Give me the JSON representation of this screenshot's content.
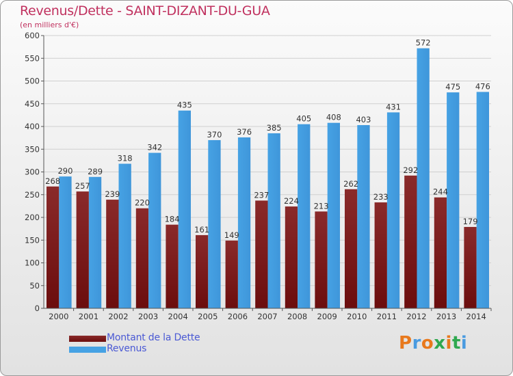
{
  "colors": {
    "dette": "#6b0d0d",
    "revenus": "#46a2e4",
    "title": "#c0305e",
    "legend_text": "#4a59d4"
  },
  "chart_data": {
    "type": "bar",
    "title": "Revenus/Dette - SAINT-DIZANT-DU-GUA",
    "subtitle": "(en milliers d'€)",
    "categories": [
      "2000",
      "2001",
      "2002",
      "2003",
      "2004",
      "2005",
      "2006",
      "2007",
      "2008",
      "2009",
      "2010",
      "2011",
      "2012",
      "2013",
      "2014"
    ],
    "series": [
      {
        "name": "Montant de la Dette",
        "values": [
          268,
          257,
          239,
          220,
          184,
          161,
          149,
          237,
          224,
          213,
          262,
          233,
          292,
          244,
          179
        ]
      },
      {
        "name": "Revenus",
        "values": [
          290,
          289,
          318,
          342,
          435,
          370,
          376,
          385,
          405,
          408,
          403,
          431,
          572,
          475,
          476
        ]
      }
    ],
    "ylim": [
      0,
      600
    ],
    "yticks": [
      0,
      50,
      100,
      150,
      200,
      250,
      300,
      350,
      400,
      450,
      500,
      550,
      600
    ],
    "grid": true,
    "legend_position": "bottom-left"
  },
  "brand": {
    "text": "Proxiti"
  }
}
